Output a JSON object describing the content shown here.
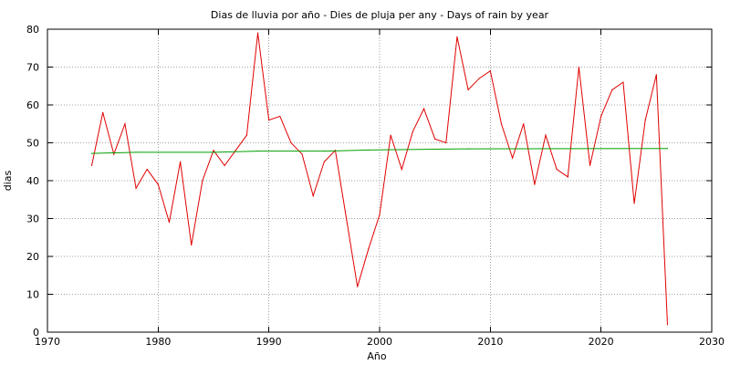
{
  "chart_data": {
    "type": "line",
    "title": "Dias de lluvia por año - Dies de pluja per any - Days of rain by year",
    "xlabel": "Año",
    "ylabel": "dias",
    "xlim": [
      1970,
      2030
    ],
    "ylim": [
      0,
      80
    ],
    "xticks": [
      "1970",
      "1980",
      "1990",
      "2000",
      "2010",
      "2020",
      "2030"
    ],
    "yticks": [
      "0",
      "10",
      "20",
      "30",
      "40",
      "50",
      "60",
      "70",
      "80"
    ],
    "grid": true,
    "legend": "none",
    "series": [
      {
        "color": "#e00000",
        "x": [
          1974,
          1975,
          1976,
          1977,
          1978,
          1979,
          1980,
          1981,
          1982,
          1983,
          1984,
          1985,
          1986,
          1987,
          1988,
          1989,
          1990,
          1991,
          1992,
          1993,
          1994,
          1995,
          1996,
          1997,
          1998,
          1999,
          2000,
          2001,
          2002,
          2003,
          2004,
          2005,
          2006,
          2007,
          2008,
          2009,
          2010,
          2011,
          2012,
          2013,
          2014,
          2015,
          2016,
          2017,
          2018,
          2019,
          2020,
          2021,
          2022,
          2023,
          2024,
          2025,
          2026
        ],
        "values": [
          44,
          58,
          47,
          55,
          38,
          43,
          39,
          29,
          45,
          23,
          40,
          48,
          44,
          48,
          52,
          79,
          56,
          57,
          50,
          47,
          36,
          45,
          48,
          30,
          12,
          22,
          31,
          52,
          43,
          53,
          59,
          51,
          50,
          78,
          64,
          67,
          69,
          55,
          46,
          55,
          39,
          52,
          43,
          41,
          70,
          44,
          57,
          64,
          66,
          34,
          56,
          68,
          2
        ]
      },
      {
        "color": "#00a000",
        "x": [
          1974,
          1978,
          1985,
          1989,
          1995,
          1999,
          2008,
          2026
        ],
        "values": [
          47.2,
          47.5,
          47.5,
          47.8,
          47.8,
          48.1,
          48.4,
          48.5
        ]
      }
    ]
  }
}
